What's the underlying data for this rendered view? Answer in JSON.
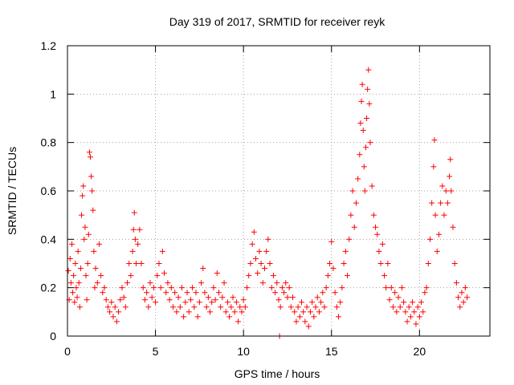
{
  "chart_data": {
    "type": "scatter",
    "title": "Day 319 of 2017, SRMTID for receiver reyk",
    "xlabel": "GPS time / hours",
    "ylabel": "SRMTID / TECUs",
    "xlim": [
      0,
      24
    ],
    "ylim": [
      0,
      1.2
    ],
    "x_ticks": [
      0,
      5,
      10,
      15,
      20
    ],
    "x_tick_labels": [
      "0",
      "5",
      "10",
      "15",
      "20"
    ],
    "y_ticks": [
      0,
      0.2,
      0.4,
      0.6,
      0.8,
      1.0,
      1.2
    ],
    "y_tick_labels": [
      "0",
      "0.2",
      "0.4",
      "0.6",
      "0.8",
      "1",
      "1.2"
    ],
    "grid": true,
    "marker": "+",
    "series_color": "#ff0000",
    "series": [
      {
        "name": "SRMTID",
        "points": [
          [
            0.05,
            0.27
          ],
          [
            0.1,
            0.15
          ],
          [
            0.15,
            0.32
          ],
          [
            0.2,
            0.22
          ],
          [
            0.25,
            0.38
          ],
          [
            0.3,
            0.18
          ],
          [
            0.35,
            0.25
          ],
          [
            0.4,
            0.14
          ],
          [
            0.45,
            0.3
          ],
          [
            0.5,
            0.2
          ],
          [
            0.55,
            0.16
          ],
          [
            0.6,
            0.35
          ],
          [
            0.65,
            0.22
          ],
          [
            0.7,
            0.12
          ],
          [
            0.75,
            0.28
          ],
          [
            0.8,
            0.5
          ],
          [
            0.85,
            0.58
          ],
          [
            0.9,
            0.62
          ],
          [
            0.95,
            0.4
          ],
          [
            1.0,
            0.45
          ],
          [
            1.05,
            0.25
          ],
          [
            1.1,
            0.15
          ],
          [
            1.15,
            0.3
          ],
          [
            1.2,
            0.42
          ],
          [
            1.25,
            0.76
          ],
          [
            1.3,
            0.74
          ],
          [
            1.35,
            0.66
          ],
          [
            1.4,
            0.6
          ],
          [
            1.45,
            0.52
          ],
          [
            1.5,
            0.35
          ],
          [
            1.55,
            0.2
          ],
          [
            1.6,
            0.28
          ],
          [
            1.7,
            0.22
          ],
          [
            1.8,
            0.38
          ],
          [
            1.9,
            0.25
          ],
          [
            2.0,
            0.18
          ],
          [
            2.1,
            0.2
          ],
          [
            2.2,
            0.15
          ],
          [
            2.3,
            0.12
          ],
          [
            2.4,
            0.1
          ],
          [
            2.5,
            0.14
          ],
          [
            2.6,
            0.08
          ],
          [
            2.7,
            0.12
          ],
          [
            2.8,
            0.06
          ],
          [
            2.9,
            0.1
          ],
          [
            3.0,
            0.15
          ],
          [
            3.1,
            0.2
          ],
          [
            3.2,
            0.16
          ],
          [
            3.3,
            0.12
          ],
          [
            3.4,
            0.22
          ],
          [
            3.5,
            0.3
          ],
          [
            3.6,
            0.25
          ],
          [
            3.7,
            0.35
          ],
          [
            3.75,
            0.44
          ],
          [
            3.8,
            0.51
          ],
          [
            3.85,
            0.4
          ],
          [
            3.9,
            0.3
          ],
          [
            4.0,
            0.38
          ],
          [
            4.1,
            0.44
          ],
          [
            4.2,
            0.3
          ],
          [
            4.3,
            0.2
          ],
          [
            4.4,
            0.15
          ],
          [
            4.5,
            0.18
          ],
          [
            4.6,
            0.12
          ],
          [
            4.7,
            0.22
          ],
          [
            4.8,
            0.16
          ],
          [
            4.9,
            0.2
          ],
          [
            5.0,
            0.14
          ],
          [
            5.1,
            0.25
          ],
          [
            5.2,
            0.3
          ],
          [
            5.3,
            0.2
          ],
          [
            5.4,
            0.35
          ],
          [
            5.5,
            0.26
          ],
          [
            5.6,
            0.18
          ],
          [
            5.7,
            0.22
          ],
          [
            5.8,
            0.15
          ],
          [
            5.9,
            0.2
          ],
          [
            6.0,
            0.12
          ],
          [
            6.1,
            0.18
          ],
          [
            6.2,
            0.1
          ],
          [
            6.3,
            0.16
          ],
          [
            6.4,
            0.12
          ],
          [
            6.5,
            0.2
          ],
          [
            6.6,
            0.08
          ],
          [
            6.7,
            0.14
          ],
          [
            6.8,
            0.18
          ],
          [
            6.9,
            0.1
          ],
          [
            7.0,
            0.15
          ],
          [
            7.1,
            0.2
          ],
          [
            7.2,
            0.12
          ],
          [
            7.3,
            0.18
          ],
          [
            7.4,
            0.08
          ],
          [
            7.5,
            0.14
          ],
          [
            7.6,
            0.22
          ],
          [
            7.7,
            0.28
          ],
          [
            7.8,
            0.18
          ],
          [
            7.9,
            0.12
          ],
          [
            8.0,
            0.16
          ],
          [
            8.1,
            0.1
          ],
          [
            8.2,
            0.14
          ],
          [
            8.3,
            0.2
          ],
          [
            8.4,
            0.15
          ],
          [
            8.5,
            0.26
          ],
          [
            8.6,
            0.18
          ],
          [
            8.7,
            0.12
          ],
          [
            8.8,
            0.16
          ],
          [
            8.9,
            0.22
          ],
          [
            9.0,
            0.1
          ],
          [
            9.1,
            0.14
          ],
          [
            9.2,
            0.08
          ],
          [
            9.3,
            0.12
          ],
          [
            9.4,
            0.16
          ],
          [
            9.5,
            0.1
          ],
          [
            9.6,
            0.14
          ],
          [
            9.7,
            0.06
          ],
          [
            9.8,
            0.12
          ],
          [
            9.9,
            0.1
          ],
          [
            10.0,
            0.15
          ],
          [
            10.1,
            0.12
          ],
          [
            10.2,
            0.2
          ],
          [
            10.3,
            0.25
          ],
          [
            10.4,
            0.3
          ],
          [
            10.5,
            0.38
          ],
          [
            10.6,
            0.43
          ],
          [
            10.7,
            0.32
          ],
          [
            10.8,
            0.26
          ],
          [
            10.9,
            0.35
          ],
          [
            11.0,
            0.3
          ],
          [
            11.1,
            0.22
          ],
          [
            11.2,
            0.28
          ],
          [
            11.3,
            0.35
          ],
          [
            11.4,
            0.4
          ],
          [
            11.5,
            0.3
          ],
          [
            11.6,
            0.2
          ],
          [
            11.7,
            0.25
          ],
          [
            11.8,
            0.18
          ],
          [
            11.9,
            0.22
          ],
          [
            12.0,
            0.15
          ],
          [
            12.05,
            0.0
          ],
          [
            12.1,
            0.12
          ],
          [
            12.2,
            0.2
          ],
          [
            12.3,
            0.18
          ],
          [
            12.4,
            0.22
          ],
          [
            12.5,
            0.16
          ],
          [
            12.6,
            0.2
          ],
          [
            12.7,
            0.12
          ],
          [
            12.8,
            0.16
          ],
          [
            12.9,
            0.1
          ],
          [
            13.0,
            0.06
          ],
          [
            13.1,
            0.12
          ],
          [
            13.2,
            0.08
          ],
          [
            13.3,
            0.14
          ],
          [
            13.4,
            0.1
          ],
          [
            13.5,
            0.06
          ],
          [
            13.6,
            0.12
          ],
          [
            13.7,
            0.04
          ],
          [
            13.8,
            0.1
          ],
          [
            13.9,
            0.14
          ],
          [
            14.0,
            0.08
          ],
          [
            14.1,
            0.12
          ],
          [
            14.2,
            0.16
          ],
          [
            14.3,
            0.1
          ],
          [
            14.4,
            0.14
          ],
          [
            14.5,
            0.18
          ],
          [
            14.6,
            0.12
          ],
          [
            14.7,
            0.2
          ],
          [
            14.8,
            0.25
          ],
          [
            14.9,
            0.3
          ],
          [
            15.0,
            0.39
          ],
          [
            15.1,
            0.28
          ],
          [
            15.2,
            0.18
          ],
          [
            15.3,
            0.12
          ],
          [
            15.4,
            0.08
          ],
          [
            15.5,
            0.14
          ],
          [
            15.6,
            0.2
          ],
          [
            15.7,
            0.3
          ],
          [
            15.8,
            0.35
          ],
          [
            15.9,
            0.25
          ],
          [
            16.0,
            0.4
          ],
          [
            16.1,
            0.5
          ],
          [
            16.2,
            0.6
          ],
          [
            16.3,
            0.45
          ],
          [
            16.4,
            0.55
          ],
          [
            16.5,
            0.65
          ],
          [
            16.6,
            0.75
          ],
          [
            16.65,
            0.88
          ],
          [
            16.7,
            0.97
          ],
          [
            16.75,
            1.04
          ],
          [
            16.8,
            0.85
          ],
          [
            16.85,
            0.7
          ],
          [
            16.9,
            0.6
          ],
          [
            16.95,
            0.78
          ],
          [
            17.0,
            0.9
          ],
          [
            17.05,
            1.02
          ],
          [
            17.1,
            1.1
          ],
          [
            17.15,
            0.96
          ],
          [
            17.2,
            0.8
          ],
          [
            17.3,
            0.62
          ],
          [
            17.4,
            0.5
          ],
          [
            17.5,
            0.45
          ],
          [
            17.6,
            0.42
          ],
          [
            17.7,
            0.35
          ],
          [
            17.8,
            0.3
          ],
          [
            17.9,
            0.38
          ],
          [
            18.0,
            0.25
          ],
          [
            18.1,
            0.2
          ],
          [
            18.2,
            0.3
          ],
          [
            18.3,
            0.15
          ],
          [
            18.4,
            0.2
          ],
          [
            18.5,
            0.12
          ],
          [
            18.6,
            0.18
          ],
          [
            18.7,
            0.1
          ],
          [
            18.8,
            0.16
          ],
          [
            18.9,
            0.12
          ],
          [
            19.0,
            0.2
          ],
          [
            19.1,
            0.14
          ],
          [
            19.2,
            0.1
          ],
          [
            19.3,
            0.06
          ],
          [
            19.4,
            0.12
          ],
          [
            19.5,
            0.08
          ],
          [
            19.6,
            0.14
          ],
          [
            19.7,
            0.1
          ],
          [
            19.8,
            0.05
          ],
          [
            19.9,
            0.12
          ],
          [
            20.0,
            0.08
          ],
          [
            20.1,
            0.14
          ],
          [
            20.2,
            0.1
          ],
          [
            20.3,
            0.18
          ],
          [
            20.4,
            0.2
          ],
          [
            20.5,
            0.3
          ],
          [
            20.6,
            0.4
          ],
          [
            20.7,
            0.55
          ],
          [
            20.8,
            0.7
          ],
          [
            20.85,
            0.81
          ],
          [
            20.9,
            0.5
          ],
          [
            21.0,
            0.35
          ],
          [
            21.1,
            0.42
          ],
          [
            21.2,
            0.55
          ],
          [
            21.3,
            0.62
          ],
          [
            21.4,
            0.5
          ],
          [
            21.5,
            0.6
          ],
          [
            21.6,
            0.55
          ],
          [
            21.7,
            0.66
          ],
          [
            21.75,
            0.73
          ],
          [
            21.8,
            0.6
          ],
          [
            21.9,
            0.45
          ],
          [
            22.0,
            0.3
          ],
          [
            22.1,
            0.22
          ],
          [
            22.2,
            0.16
          ],
          [
            22.3,
            0.12
          ],
          [
            22.4,
            0.18
          ],
          [
            22.5,
            0.14
          ],
          [
            22.6,
            0.2
          ],
          [
            22.7,
            0.16
          ]
        ]
      }
    ]
  }
}
